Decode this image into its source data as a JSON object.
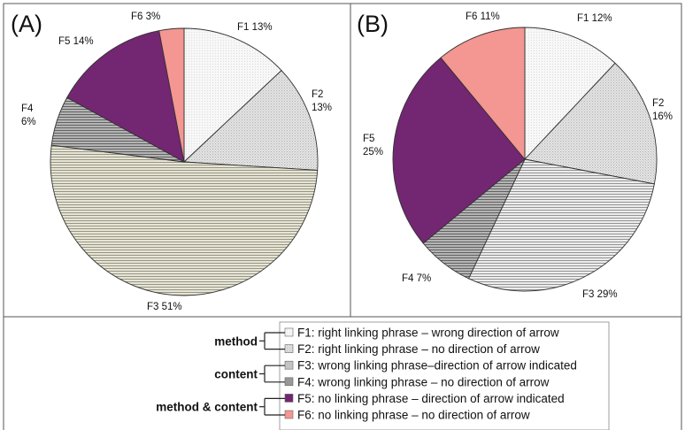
{
  "chart_data": [
    {
      "type": "pie",
      "panel_label": "(A)",
      "categories": [
        "F1",
        "F2",
        "F3",
        "F4",
        "F5",
        "F6"
      ],
      "values": [
        13,
        13,
        51,
        6,
        14,
        3
      ],
      "value_labels": [
        "13%",
        "13%",
        "51%",
        "6%",
        "14%",
        "3%"
      ]
    },
    {
      "type": "pie",
      "panel_label": "(B)",
      "categories": [
        "F1",
        "F2",
        "F3",
        "F4",
        "F5",
        "F6"
      ],
      "values": [
        12,
        16,
        29,
        7,
        25,
        11
      ],
      "value_labels": [
        "12%",
        "16%",
        "29%",
        "7%",
        "25%",
        "11%"
      ]
    }
  ],
  "legend": {
    "items": [
      {
        "key": "F1",
        "text": "right linking phrase – wrong direction of arrow",
        "color": "#f2f2f2"
      },
      {
        "key": "F2",
        "text": "right linking phrase – no direction of arrow",
        "color": "#d9d9d9"
      },
      {
        "key": "F3",
        "text": "wrong linking phrase–direction of arrow indicated",
        "color": "#c8c8c8"
      },
      {
        "key": "F4",
        "text": "wrong linking phrase – no direction of arrow",
        "color": "#9a9a9a"
      },
      {
        "key": "F5",
        "text": "no linking phrase – direction of arrow indicated",
        "color": "#742370"
      },
      {
        "key": "F6",
        "text": "no linking phrase – no direction of arrow",
        "color": "#f39693"
      }
    ],
    "groups": [
      {
        "label": "method",
        "range": [
          0,
          1
        ]
      },
      {
        "label": "content",
        "range": [
          2,
          3
        ]
      },
      {
        "label": "method & content",
        "range": [
          4,
          5
        ]
      }
    ]
  },
  "colors": {
    "F1": "#f4f4f4",
    "F2": "#dcdcdc",
    "F3_A": "#d8d6c6",
    "F3_B": "#dedede",
    "F4": "#a3a3a3",
    "F5": "#732671",
    "F6": "#f49691",
    "frame": "#555555"
  }
}
